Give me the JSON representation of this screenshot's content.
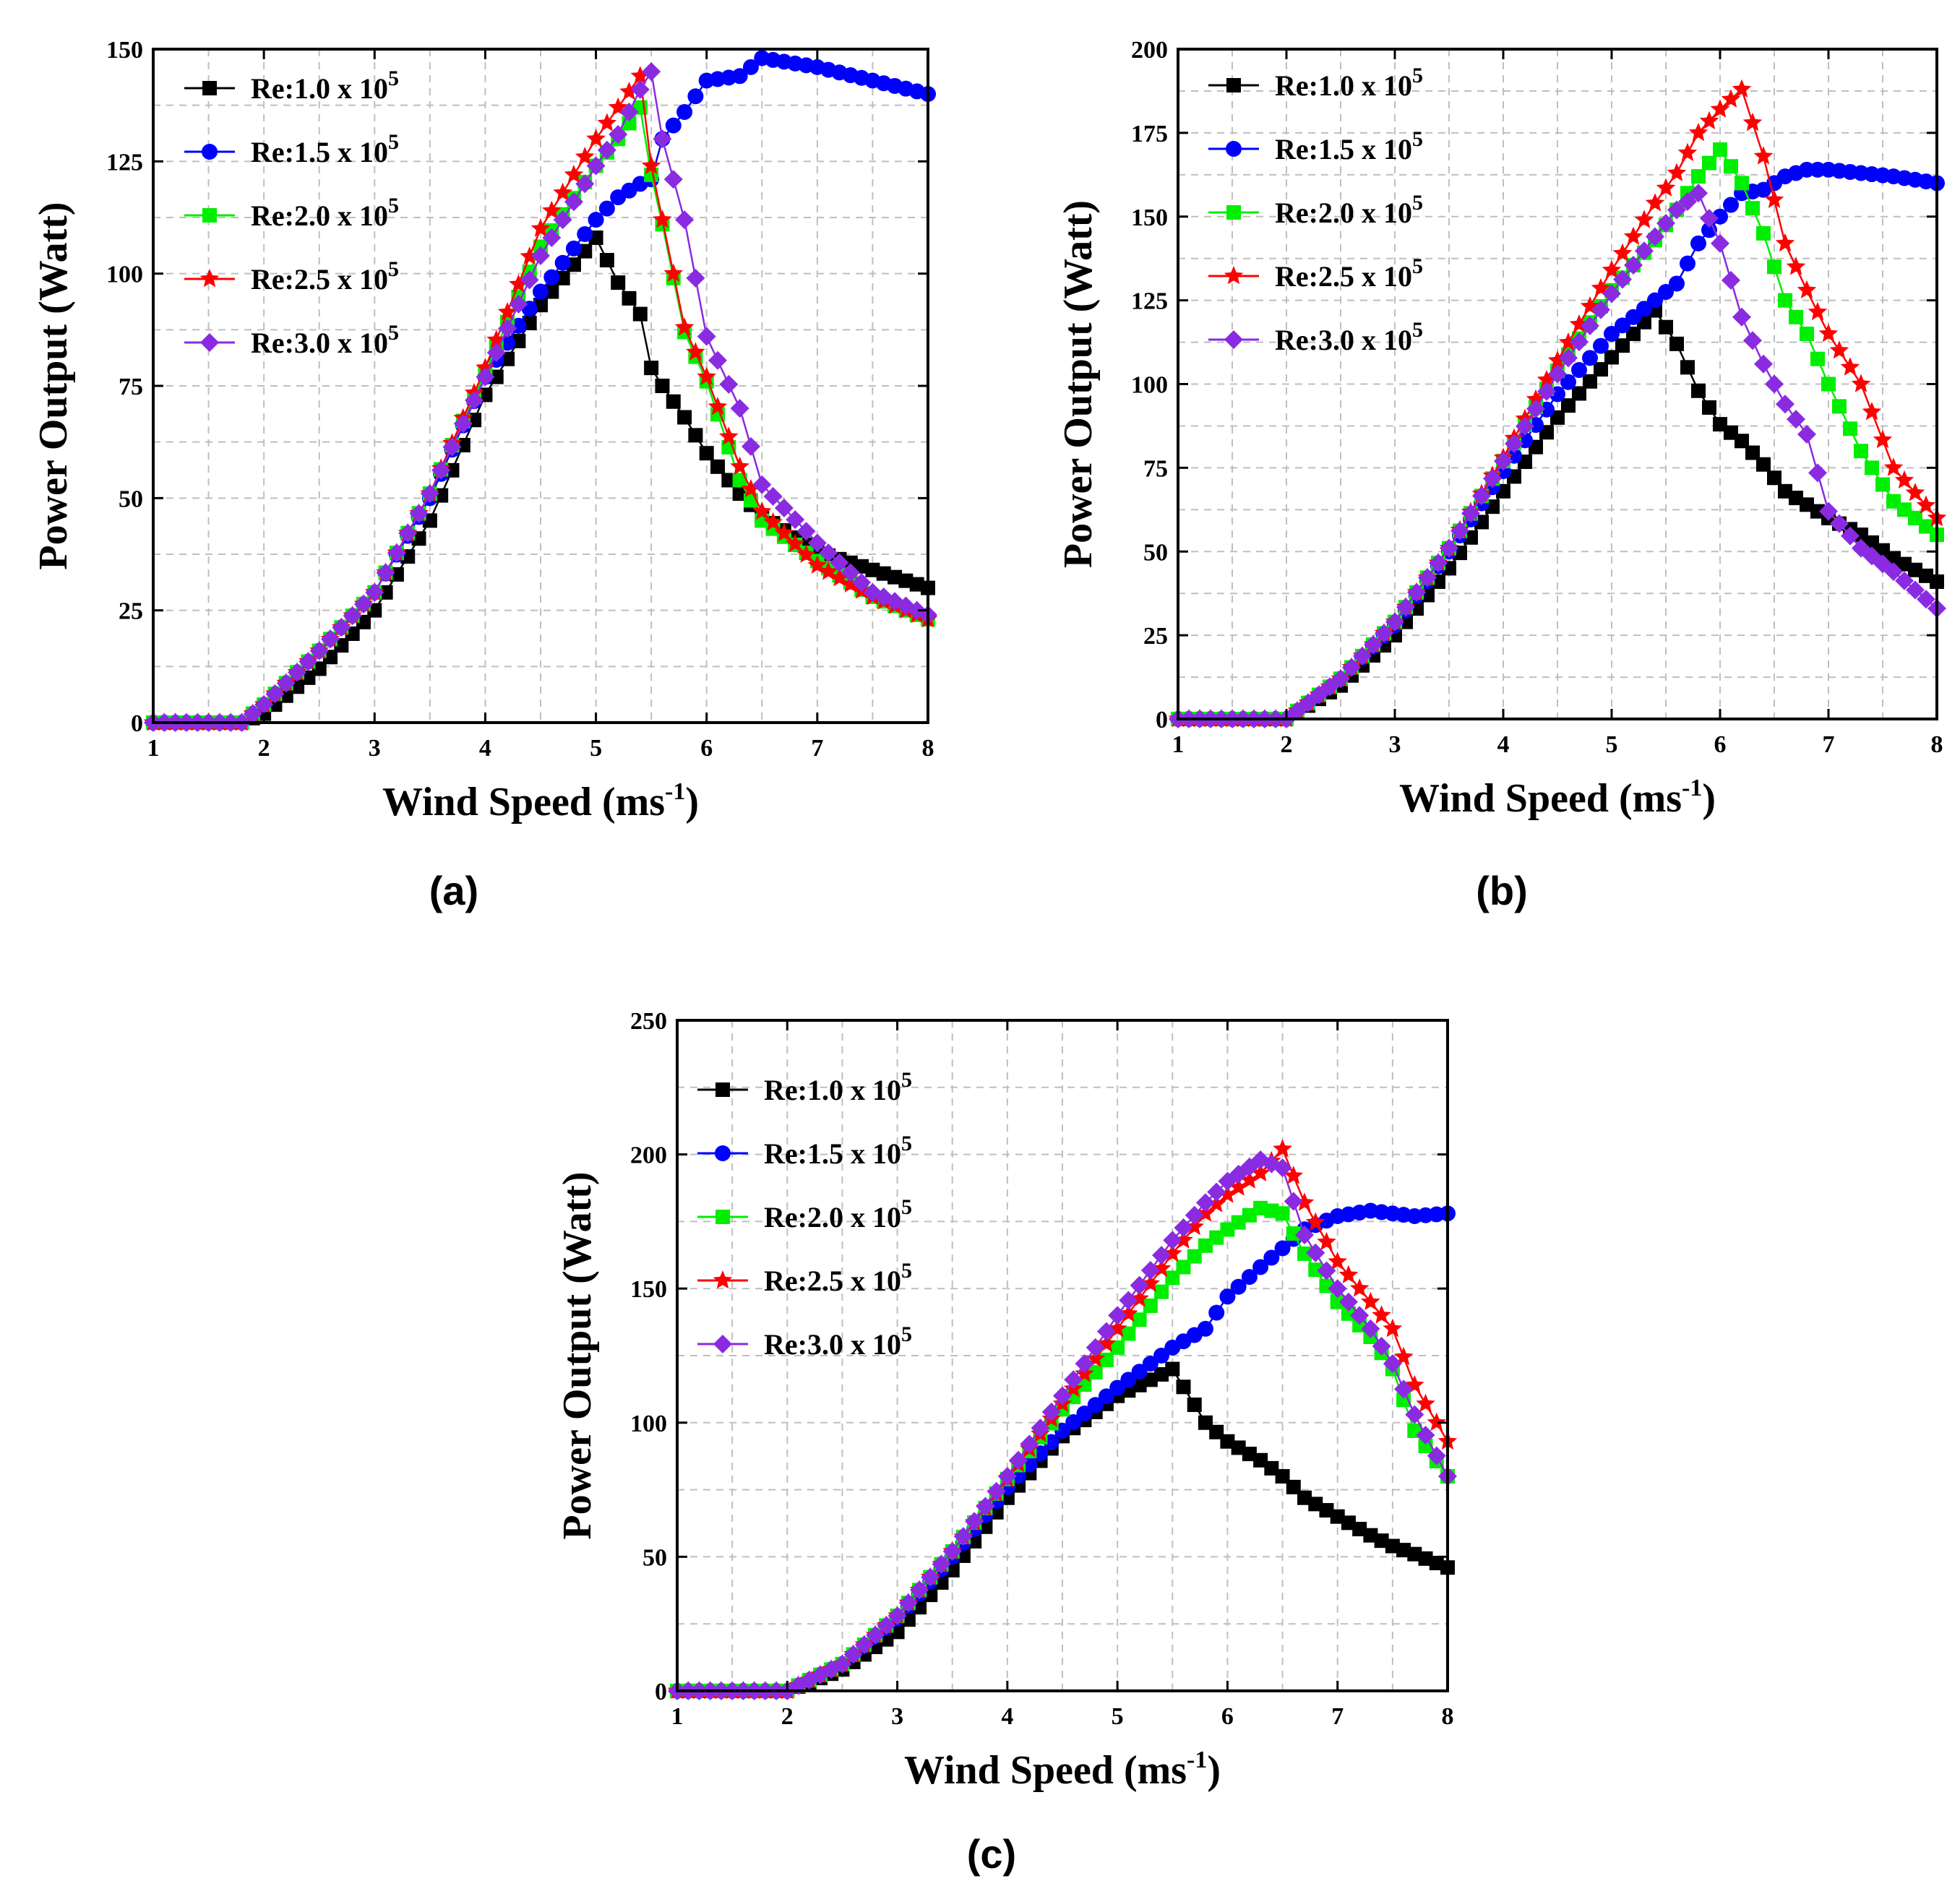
{
  "chart_data": [
    {
      "type": "line",
      "panel_label": "(a)",
      "xlabel": "Wind Speed (ms",
      "xlabel_sup": "-1",
      "xlabel_tail": ")",
      "ylabel": "Power Output (Watt)",
      "xlim": [
        1,
        8
      ],
      "ylim": [
        0,
        150
      ],
      "xticks": [
        1,
        2,
        3,
        4,
        5,
        6,
        7,
        8
      ],
      "yticks": [
        0,
        25,
        50,
        75,
        100,
        125,
        150
      ],
      "grid": true,
      "legend_position": "top-left",
      "x": [
        1.0,
        1.5,
        1.8,
        2.0,
        2.5,
        3.0,
        3.5,
        4.0,
        4.5,
        5.0,
        5.2,
        5.4,
        5.5,
        5.6,
        5.8,
        6.0,
        6.3,
        6.5,
        7.0,
        7.5,
        8.0
      ],
      "series": [
        {
          "name": "Re:1.0 x 10",
          "sup": "5",
          "color": "#000000",
          "marker": "square",
          "values": [
            0,
            0,
            0,
            2,
            12,
            25,
            45,
            73,
            93,
            108,
            98,
            91,
            79,
            75,
            68,
            60,
            51,
            46,
            38,
            34,
            30
          ]
        },
        {
          "name": "Re:1.5 x 10",
          "sup": "5",
          "color": "#0000ff",
          "marker": "circle",
          "values": [
            0,
            0,
            0,
            4,
            16,
            29,
            50,
            77,
            96,
            112,
            117,
            120,
            121,
            130,
            136,
            143,
            144,
            148,
            146,
            143,
            140
          ]
        },
        {
          "name": "Re:2.0 x 10",
          "sup": "5",
          "color": "#00ee00",
          "marker": "square",
          "values": [
            0,
            0,
            0,
            4,
            16,
            29,
            51,
            78,
            106,
            124,
            130,
            137,
            122,
            111,
            87,
            76,
            54,
            45,
            36,
            28,
            23
          ]
        },
        {
          "name": "Re:2.5 x 10",
          "sup": "5",
          "color": "#ff0000",
          "marker": "star",
          "values": [
            0,
            0,
            0,
            4,
            16,
            29,
            51,
            79,
            110,
            130,
            137,
            144,
            124,
            112,
            88,
            77,
            57,
            47,
            35,
            28,
            23
          ]
        },
        {
          "name": "Re:3.0 x 10",
          "sup": "5",
          "color": "#8a2be2",
          "marker": "diamond",
          "values": [
            0,
            0,
            0,
            4,
            16,
            29,
            51,
            77,
            104,
            124,
            131,
            141,
            145,
            130,
            112,
            86,
            70,
            53,
            40,
            29,
            24
          ]
        }
      ]
    },
    {
      "type": "line",
      "panel_label": "(b)",
      "xlabel": "Wind Speed (ms",
      "xlabel_sup": "-1",
      "xlabel_tail": ")",
      "ylabel": "Power Output (Watt)",
      "xlim": [
        1,
        8
      ],
      "ylim": [
        0,
        200
      ],
      "xticks": [
        1,
        2,
        3,
        4,
        5,
        6,
        7,
        8
      ],
      "yticks": [
        0,
        25,
        50,
        75,
        100,
        125,
        150,
        175,
        200
      ],
      "grid": true,
      "legend_position": "top-left",
      "x": [
        1.0,
        1.5,
        2.0,
        2.5,
        3.0,
        3.5,
        4.0,
        4.5,
        5.0,
        5.4,
        5.6,
        5.8,
        6.0,
        6.2,
        6.4,
        6.6,
        6.8,
        7.0,
        7.3,
        7.6,
        8.0
      ],
      "series": [
        {
          "name": "Re:1.0 x 10",
          "sup": "5",
          "color": "#000000",
          "marker": "square",
          "values": [
            0,
            0,
            0,
            10,
            25,
            45,
            68,
            90,
            108,
            122,
            112,
            98,
            88,
            83,
            76,
            68,
            64,
            60,
            55,
            48,
            41
          ]
        },
        {
          "name": "Re:1.5 x 10",
          "sup": "5",
          "color": "#0000ff",
          "marker": "circle",
          "values": [
            0,
            0,
            0,
            12,
            28,
            50,
            74,
            97,
            115,
            125,
            130,
            142,
            150,
            157,
            158,
            162,
            164,
            164,
            163,
            162,
            160
          ]
        },
        {
          "name": "Re:2.0 x 10",
          "sup": "5",
          "color": "#00ee00",
          "marker": "square",
          "values": [
            0,
            0,
            0,
            12,
            29,
            51,
            77,
            104,
            128,
            143,
            152,
            162,
            170,
            160,
            145,
            125,
            115,
            100,
            80,
            65,
            55
          ]
        },
        {
          "name": "Re:2.5 x 10",
          "sup": "5",
          "color": "#ff0000",
          "marker": "star",
          "values": [
            0,
            0,
            0,
            12,
            29,
            51,
            78,
            107,
            134,
            154,
            163,
            175,
            182,
            188,
            168,
            142,
            128,
            115,
            100,
            75,
            60
          ]
        },
        {
          "name": "Re:3.0 x 10",
          "sup": "5",
          "color": "#8a2be2",
          "marker": "diamond",
          "values": [
            0,
            0,
            0,
            12,
            29,
            51,
            77,
            103,
            127,
            144,
            152,
            157,
            142,
            120,
            106,
            94,
            85,
            62,
            51,
            44,
            33
          ]
        }
      ]
    },
    {
      "type": "line",
      "panel_label": "(c)",
      "xlabel": "Wind Speed (ms",
      "xlabel_sup": "-1",
      "xlabel_tail": ")",
      "ylabel": "Power Output (Watt)",
      "xlim": [
        1,
        8
      ],
      "ylim": [
        0,
        250
      ],
      "xticks": [
        1,
        2,
        3,
        4,
        5,
        6,
        7,
        8
      ],
      "yticks": [
        0,
        50,
        100,
        150,
        200,
        250
      ],
      "grid": true,
      "legend_position": "top-left",
      "x": [
        1.0,
        1.5,
        2.0,
        2.5,
        3.0,
        3.5,
        4.0,
        4.5,
        5.0,
        5.5,
        5.8,
        6.0,
        6.3,
        6.5,
        6.7,
        7.0,
        7.3,
        7.5,
        7.7,
        8.0
      ],
      "series": [
        {
          "name": "Re:1.0 x 10",
          "sup": "5",
          "color": "#000000",
          "marker": "square",
          "values": [
            0,
            0,
            0,
            8,
            22,
            45,
            72,
            95,
            110,
            120,
            100,
            93,
            86,
            80,
            72,
            65,
            58,
            54,
            51,
            46
          ]
        },
        {
          "name": "Re:1.5 x 10",
          "sup": "5",
          "color": "#0000ff",
          "marker": "circle",
          "values": [
            0,
            0,
            0,
            10,
            27,
            50,
            76,
            97,
            113,
            128,
            135,
            147,
            158,
            165,
            172,
            177,
            179,
            178,
            177,
            178
          ]
        },
        {
          "name": "Re:2.0 x 10",
          "sup": "5",
          "color": "#00ee00",
          "marker": "square",
          "values": [
            0,
            0,
            0,
            10,
            28,
            52,
            79,
            105,
            128,
            154,
            166,
            172,
            180,
            178,
            163,
            145,
            132,
            120,
            97,
            80
          ]
        },
        {
          "name": "Re:2.5 x 10",
          "sup": "5",
          "color": "#ff0000",
          "marker": "star",
          "values": [
            0,
            0,
            0,
            10,
            28,
            52,
            79,
            107,
            135,
            163,
            178,
            185,
            193,
            202,
            182,
            160,
            145,
            135,
            114,
            93
          ]
        },
        {
          "name": "Re:3.0 x 10",
          "sup": "5",
          "color": "#8a2be2",
          "marker": "diamond",
          "values": [
            0,
            0,
            0,
            10,
            28,
            52,
            80,
            110,
            140,
            168,
            182,
            190,
            198,
            195,
            170,
            150,
            135,
            122,
            103,
            80
          ]
        }
      ]
    }
  ]
}
